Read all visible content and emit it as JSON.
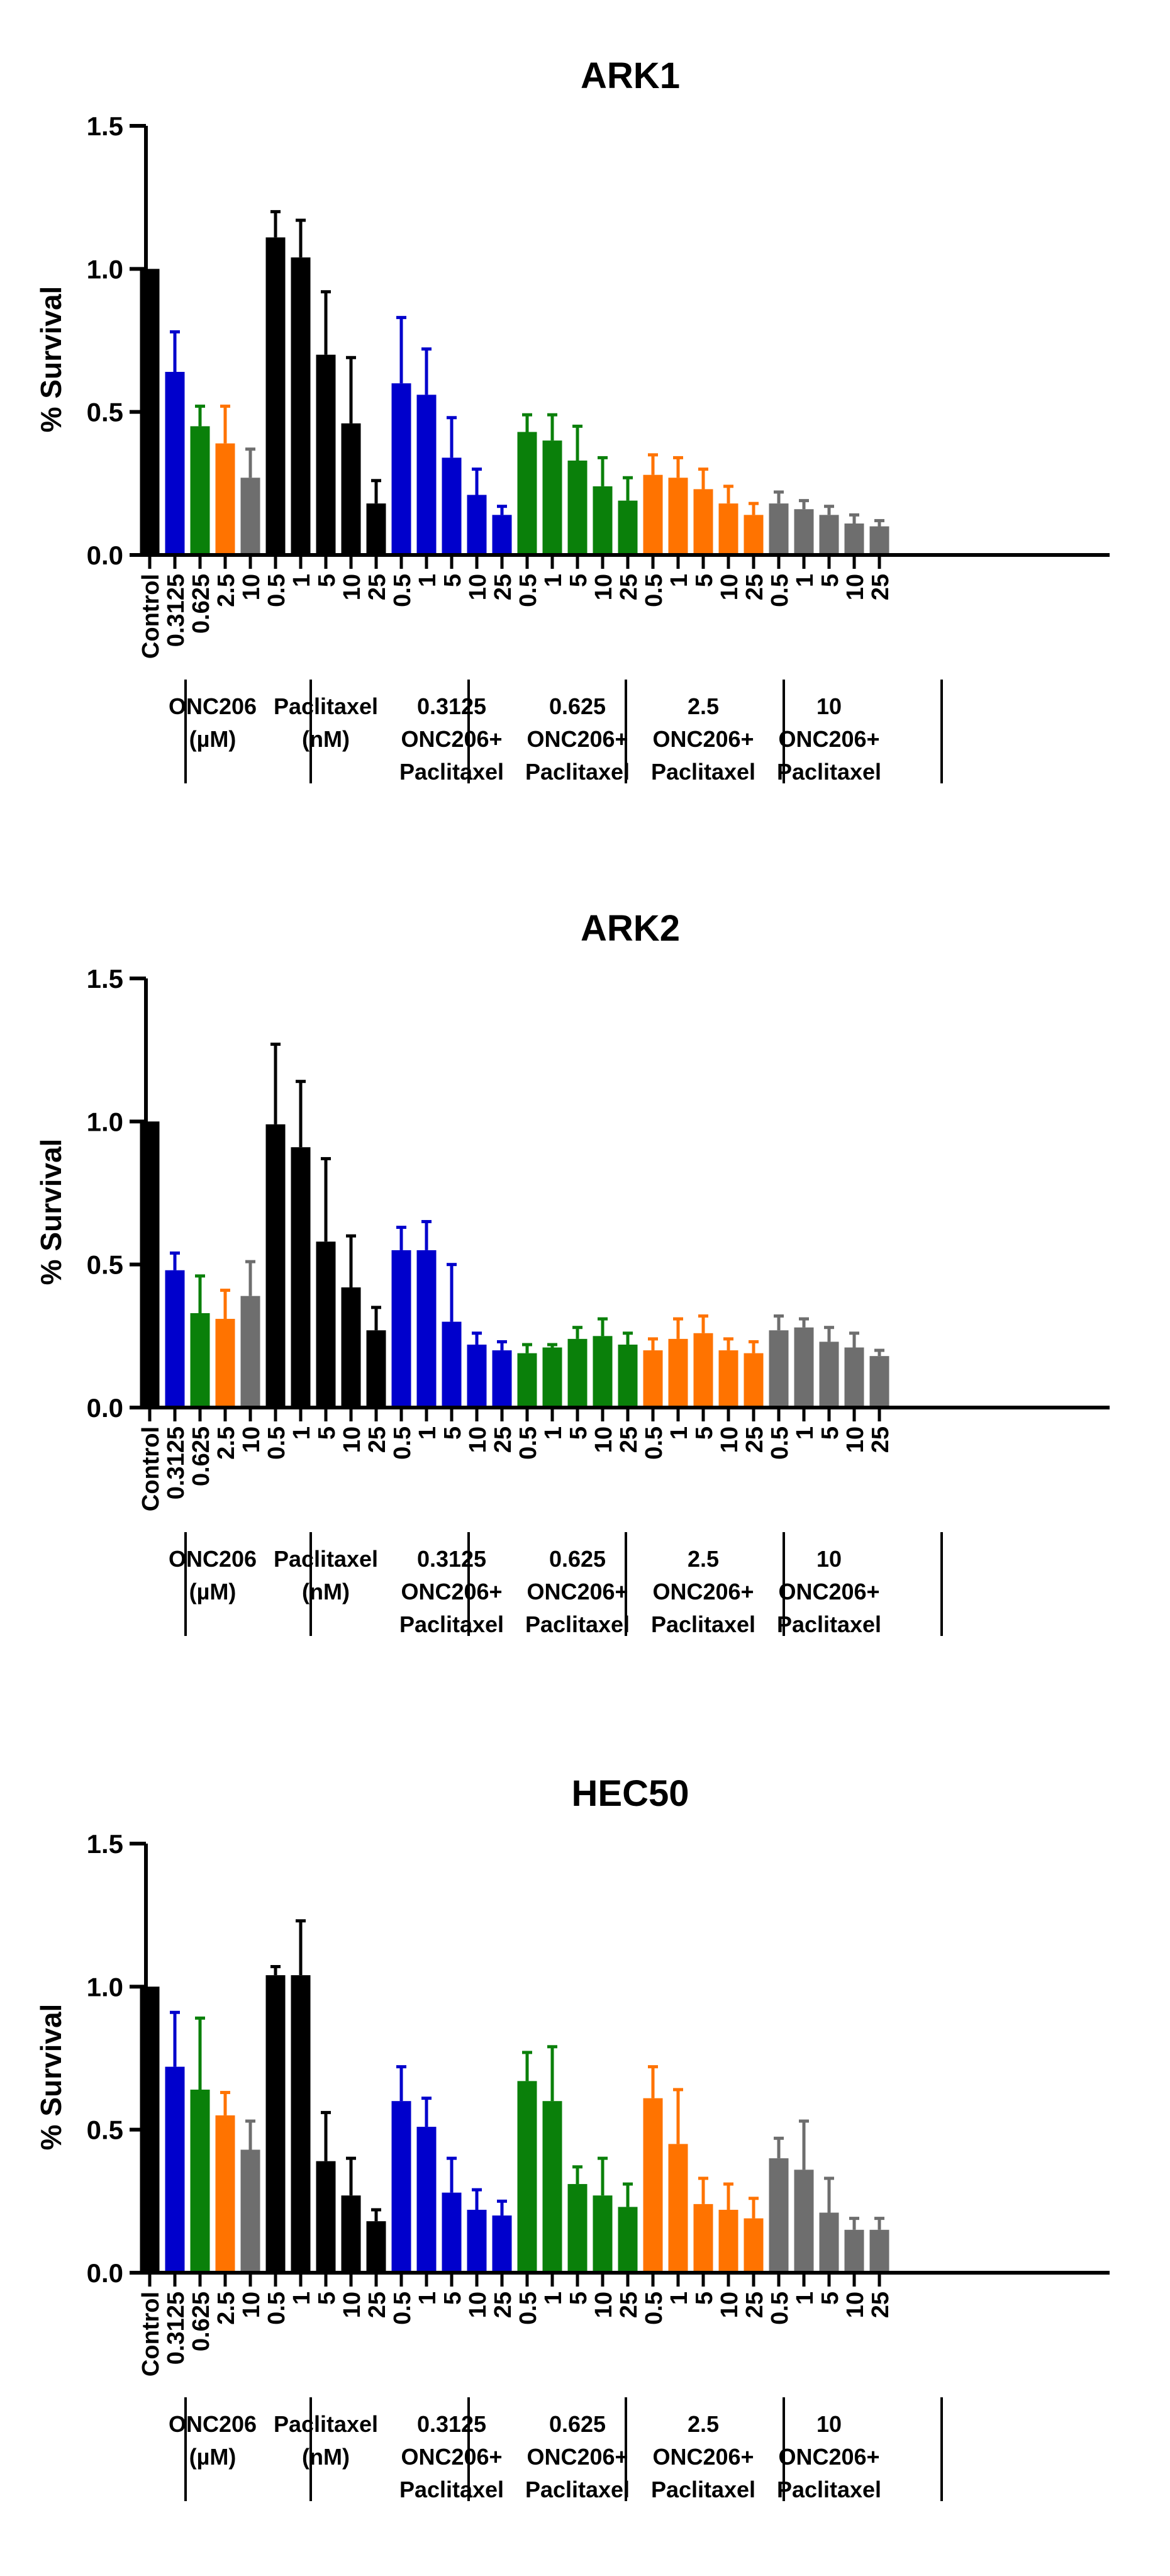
{
  "chart_data": [
    {
      "type": "bar",
      "title": "ARK1",
      "ylabel": "% Survival",
      "xlabel": "",
      "ylim": [
        0,
        1.5
      ],
      "yticks": [
        "0.0",
        "0.5",
        "1.0",
        "1.5"
      ],
      "categories": [
        "Control",
        "0.3125",
        "0.625",
        "2.5",
        "10",
        "0.5",
        "1",
        "5",
        "10",
        "25",
        "0.5",
        "1",
        "5",
        "10",
        "25",
        "0.5",
        "1",
        "5",
        "10",
        "25",
        "0.5",
        "1",
        "5",
        "10",
        "25",
        "0.5",
        "1",
        "5",
        "10",
        "25"
      ],
      "values": [
        1.0,
        0.64,
        0.45,
        0.39,
        0.27,
        1.11,
        1.04,
        0.7,
        0.46,
        0.18,
        0.6,
        0.56,
        0.34,
        0.21,
        0.14,
        0.43,
        0.4,
        0.33,
        0.24,
        0.19,
        0.28,
        0.27,
        0.23,
        0.18,
        0.14,
        0.18,
        0.16,
        0.14,
        0.11,
        0.1
      ],
      "errors": [
        0,
        0.14,
        0.07,
        0.13,
        0.1,
        0.09,
        0.13,
        0.22,
        0.23,
        0.08,
        0.23,
        0.16,
        0.14,
        0.09,
        0.03,
        0.06,
        0.09,
        0.12,
        0.1,
        0.08,
        0.07,
        0.07,
        0.07,
        0.06,
        0.04,
        0.04,
        0.03,
        0.03,
        0.03,
        0.02
      ],
      "colors": [
        "#000000",
        "#0000cc",
        "#0a800a",
        "#ff7300",
        "#6e6e6e",
        "#000000",
        "#000000",
        "#000000",
        "#000000",
        "#000000",
        "#0000cc",
        "#0000cc",
        "#0000cc",
        "#0000cc",
        "#0000cc",
        "#0a800a",
        "#0a800a",
        "#0a800a",
        "#0a800a",
        "#0a800a",
        "#ff7300",
        "#ff7300",
        "#ff7300",
        "#ff7300",
        "#ff7300",
        "#6e6e6e",
        "#6e6e6e",
        "#6e6e6e",
        "#6e6e6e",
        "#6e6e6e"
      ],
      "groups": [
        {
          "lines": [
            "ONC206",
            "(µM)"
          ],
          "start": 1,
          "end": 4
        },
        {
          "lines": [
            "Paclitaxel",
            "(nM)"
          ],
          "start": 5,
          "end": 9
        },
        {
          "lines": [
            "0.3125",
            "ONC206+",
            "Paclitaxel"
          ],
          "start": 10,
          "end": 14
        },
        {
          "lines": [
            "0.625",
            "ONC206+",
            "Paclitaxel"
          ],
          "start": 15,
          "end": 19
        },
        {
          "lines": [
            "2.5",
            "ONC206+",
            "Paclitaxel"
          ],
          "start": 20,
          "end": 24
        },
        {
          "lines": [
            "10",
            "ONC206+",
            "Paclitaxel"
          ],
          "start": 25,
          "end": 29
        }
      ]
    },
    {
      "type": "bar",
      "title": "ARK2",
      "ylabel": "% Survival",
      "xlabel": "",
      "ylim": [
        0,
        1.5
      ],
      "yticks": [
        "0.0",
        "0.5",
        "1.0",
        "1.5"
      ],
      "categories": [
        "Control",
        "0.3125",
        "0.625",
        "2.5",
        "10",
        "0.5",
        "1",
        "5",
        "10",
        "25",
        "0.5",
        "1",
        "5",
        "10",
        "25",
        "0.5",
        "1",
        "5",
        "10",
        "25",
        "0.5",
        "1",
        "5",
        "10",
        "25",
        "0.5",
        "1",
        "5",
        "10",
        "25"
      ],
      "values": [
        1.0,
        0.48,
        0.33,
        0.31,
        0.39,
        0.99,
        0.91,
        0.58,
        0.42,
        0.27,
        0.55,
        0.55,
        0.3,
        0.22,
        0.2,
        0.19,
        0.21,
        0.24,
        0.25,
        0.22,
        0.2,
        0.24,
        0.26,
        0.2,
        0.19,
        0.27,
        0.28,
        0.23,
        0.21,
        0.18
      ],
      "errors": [
        0,
        0.06,
        0.13,
        0.1,
        0.12,
        0.28,
        0.23,
        0.29,
        0.18,
        0.08,
        0.08,
        0.1,
        0.2,
        0.04,
        0.03,
        0.03,
        0.01,
        0.04,
        0.06,
        0.04,
        0.04,
        0.07,
        0.06,
        0.04,
        0.04,
        0.05,
        0.03,
        0.05,
        0.05,
        0.02
      ],
      "colors": [
        "#000000",
        "#0000cc",
        "#0a800a",
        "#ff7300",
        "#6e6e6e",
        "#000000",
        "#000000",
        "#000000",
        "#000000",
        "#000000",
        "#0000cc",
        "#0000cc",
        "#0000cc",
        "#0000cc",
        "#0000cc",
        "#0a800a",
        "#0a800a",
        "#0a800a",
        "#0a800a",
        "#0a800a",
        "#ff7300",
        "#ff7300",
        "#ff7300",
        "#ff7300",
        "#ff7300",
        "#6e6e6e",
        "#6e6e6e",
        "#6e6e6e",
        "#6e6e6e",
        "#6e6e6e"
      ],
      "groups": [
        {
          "lines": [
            "ONC206",
            "(µM)"
          ],
          "start": 1,
          "end": 4
        },
        {
          "lines": [
            "Paclitaxel",
            "(nM)"
          ],
          "start": 5,
          "end": 9
        },
        {
          "lines": [
            "0.3125",
            "ONC206+",
            "Paclitaxel"
          ],
          "start": 10,
          "end": 14
        },
        {
          "lines": [
            "0.625",
            "ONC206+",
            "Paclitaxel"
          ],
          "start": 15,
          "end": 19
        },
        {
          "lines": [
            "2.5",
            "ONC206+",
            "Paclitaxel"
          ],
          "start": 20,
          "end": 24
        },
        {
          "lines": [
            "10",
            "ONC206+",
            "Paclitaxel"
          ],
          "start": 25,
          "end": 29
        }
      ]
    },
    {
      "type": "bar",
      "title": "HEC50",
      "ylabel": "% Survival",
      "xlabel": "",
      "ylim": [
        0,
        1.5
      ],
      "yticks": [
        "0.0",
        "0.5",
        "1.0",
        "1.5"
      ],
      "categories": [
        "Control",
        "0.3125",
        "0.625",
        "2.5",
        "10",
        "0.5",
        "1",
        "5",
        "10",
        "25",
        "0.5",
        "1",
        "5",
        "10",
        "25",
        "0.5",
        "1",
        "5",
        "10",
        "25",
        "0.5",
        "1",
        "5",
        "10",
        "25",
        "0.5",
        "1",
        "5",
        "10",
        "25"
      ],
      "values": [
        1.0,
        0.72,
        0.64,
        0.55,
        0.43,
        1.04,
        1.04,
        0.39,
        0.27,
        0.18,
        0.6,
        0.51,
        0.28,
        0.22,
        0.2,
        0.67,
        0.6,
        0.31,
        0.27,
        0.23,
        0.61,
        0.45,
        0.24,
        0.22,
        0.19,
        0.4,
        0.36,
        0.21,
        0.15,
        0.15
      ],
      "errors": [
        0,
        0.19,
        0.25,
        0.08,
        0.1,
        0.03,
        0.19,
        0.17,
        0.13,
        0.04,
        0.12,
        0.1,
        0.12,
        0.07,
        0.05,
        0.1,
        0.19,
        0.06,
        0.13,
        0.08,
        0.11,
        0.19,
        0.09,
        0.09,
        0.07,
        0.07,
        0.17,
        0.12,
        0.04,
        0.04
      ],
      "colors": [
        "#000000",
        "#0000cc",
        "#0a800a",
        "#ff7300",
        "#6e6e6e",
        "#000000",
        "#000000",
        "#000000",
        "#000000",
        "#000000",
        "#0000cc",
        "#0000cc",
        "#0000cc",
        "#0000cc",
        "#0000cc",
        "#0a800a",
        "#0a800a",
        "#0a800a",
        "#0a800a",
        "#0a800a",
        "#ff7300",
        "#ff7300",
        "#ff7300",
        "#ff7300",
        "#ff7300",
        "#6e6e6e",
        "#6e6e6e",
        "#6e6e6e",
        "#6e6e6e",
        "#6e6e6e"
      ],
      "groups": [
        {
          "lines": [
            "ONC206",
            "(µM)"
          ],
          "start": 1,
          "end": 4
        },
        {
          "lines": [
            "Paclitaxel",
            "(nM)"
          ],
          "start": 5,
          "end": 9
        },
        {
          "lines": [
            "0.3125",
            "ONC206+",
            "Paclitaxel"
          ],
          "start": 10,
          "end": 14
        },
        {
          "lines": [
            "0.625",
            "ONC206+",
            "Paclitaxel"
          ],
          "start": 15,
          "end": 19
        },
        {
          "lines": [
            "2.5",
            "ONC206+",
            "Paclitaxel"
          ],
          "start": 20,
          "end": 24
        },
        {
          "lines": [
            "10",
            "ONC206+",
            "Paclitaxel"
          ],
          "start": 25,
          "end": 29
        }
      ]
    }
  ]
}
